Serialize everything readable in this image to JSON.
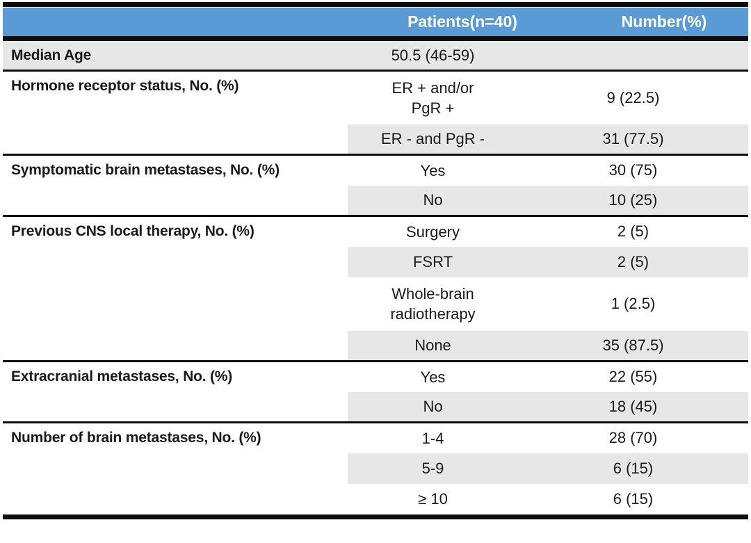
{
  "table": {
    "title": "patient-characteristics",
    "header": {
      "patients_label": "Patients(n=40)",
      "number_label": "Number(%)"
    },
    "sections": [
      {
        "label": "Median Age",
        "label_shaded": true,
        "rows": [
          {
            "value": "50.5 (46-59)",
            "number": "",
            "shaded": true
          }
        ]
      },
      {
        "label": "Hormone receptor status, No. (%)",
        "label_shaded": false,
        "rows": [
          {
            "value": "ER + and/or\nPgR +",
            "number": "9 (22.5)",
            "shaded": false
          },
          {
            "value": "ER - and PgR -",
            "number": "31 (77.5)",
            "shaded": true
          }
        ]
      },
      {
        "label": "Symptomatic brain metastases, No. (%)",
        "label_shaded": false,
        "rows": [
          {
            "value": "Yes",
            "number": "30 (75)",
            "shaded": false
          },
          {
            "value": "No",
            "number": "10 (25)",
            "shaded": true
          }
        ]
      },
      {
        "label": "Previous CNS local therapy, No. (%)",
        "label_shaded": false,
        "rows": [
          {
            "value": "Surgery",
            "number": "2 (5)",
            "shaded": false
          },
          {
            "value": "FSRT",
            "number": "2 (5)",
            "shaded": true
          },
          {
            "value": "Whole-brain\nradiotherapy",
            "number": "1 (2.5)",
            "shaded": false
          },
          {
            "value": "None",
            "number": "35 (87.5)",
            "shaded": true
          }
        ]
      },
      {
        "label": "Extracranial metastases, No. (%)",
        "label_shaded": false,
        "rows": [
          {
            "value": "Yes",
            "number": "22 (55)",
            "shaded": false
          },
          {
            "value": "No",
            "number": "18 (45)",
            "shaded": true
          }
        ]
      },
      {
        "label": "Number of brain metastases, No. (%)",
        "label_shaded": false,
        "rows": [
          {
            "value": "1-4",
            "number": "28 (70)",
            "shaded": false
          },
          {
            "value": "5-9",
            "number": "6 (15)",
            "shaded": true
          },
          {
            "value": "≥ 10",
            "number": "6 (15)",
            "shaded": false
          }
        ]
      }
    ]
  },
  "colors": {
    "header_bg": "#5b9bd5",
    "header_text": "#ffffff",
    "row_shade": "#e8e7e7",
    "rule": "#0d0d0d"
  }
}
